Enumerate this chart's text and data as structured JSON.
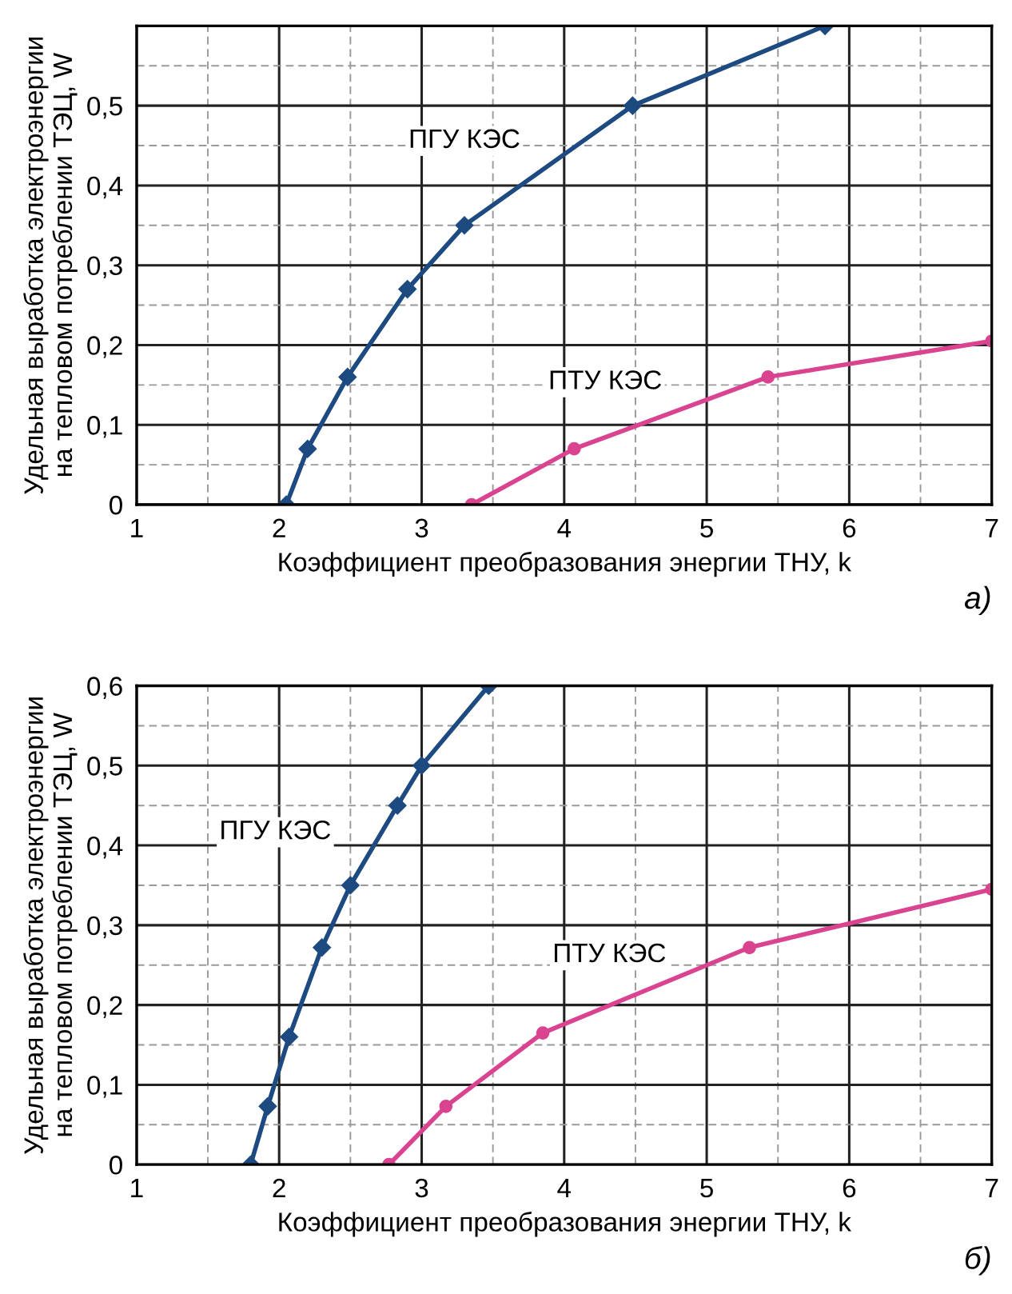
{
  "chart_data": [
    {
      "type": "line",
      "xlabel": "Коэффициент преобразования энергии ТНУ, k",
      "ylabel": "Удельная выработка электроэнергии\nна тепловом потреблении ТЭЦ, W",
      "xlim": [
        1,
        7
      ],
      "ylim": [
        0,
        0.6
      ],
      "xticks": [
        1,
        2,
        3,
        4,
        5,
        6,
        7
      ],
      "yticks": [
        0,
        {
          "value": 0.1,
          "label": "0,1"
        },
        {
          "value": 0.2,
          "label": "0,2"
        },
        {
          "value": 0.3,
          "label": "0,3"
        },
        {
          "value": 0.4,
          "label": "0,4"
        },
        {
          "value": 0.5,
          "label": "0,5"
        },
        {
          "value": 0.6,
          "label": null
        }
      ],
      "grid": true,
      "line_style": "solid",
      "annotations": [
        "а)"
      ],
      "series": [
        {
          "name": "ПГУ КЭС",
          "color": "#1d4a80",
          "marker": "diamond",
          "x": [
            2.05,
            2.2,
            2.48,
            2.9,
            3.3,
            4.48,
            5.83
          ],
          "values": [
            0,
            0.07,
            0.16,
            0.27,
            0.35,
            0.5,
            0.6
          ]
        },
        {
          "name": "ПТУ КЭС",
          "color": "#d9438f",
          "marker": "circle",
          "x": [
            3.35,
            4.07,
            5.43,
            7
          ],
          "values": [
            0,
            0.07,
            0.16,
            0.205
          ]
        }
      ]
    },
    {
      "type": "line",
      "xlabel": "Коэффициент преобразования энергии ТНУ, k",
      "ylabel": "Удельная выработка электроэнергии\nна тепловом потреблении ТЭЦ, W",
      "xlim": [
        1,
        7
      ],
      "ylim": [
        0,
        0.6
      ],
      "xticks": [
        1,
        2,
        3,
        4,
        5,
        6,
        7
      ],
      "yticks": [
        0,
        {
          "value": 0.1,
          "label": "0,1"
        },
        {
          "value": 0.2,
          "label": "0,2"
        },
        {
          "value": 0.3,
          "label": "0,3"
        },
        {
          "value": 0.4,
          "label": "0,4"
        },
        {
          "value": 0.5,
          "label": "0,5"
        },
        {
          "value": 0.6,
          "label": "0,6"
        }
      ],
      "grid": true,
      "line_style": "solid",
      "annotations": [
        "б)"
      ],
      "series": [
        {
          "name": "ПГУ КЭС",
          "color": "#1d4a80",
          "marker": "diamond",
          "x": [
            1.8,
            1.92,
            2.07,
            2.3,
            2.5,
            2.83,
            3.0,
            3.47
          ],
          "values": [
            0,
            0.073,
            0.16,
            0.272,
            0.35,
            0.45,
            0.5,
            0.6
          ]
        },
        {
          "name": "ПТУ КЭС",
          "color": "#d9438f",
          "marker": "circle",
          "x": [
            2.77,
            3.17,
            3.85,
            5.3,
            7
          ],
          "values": [
            0,
            0.073,
            0.165,
            0.272,
            0.345
          ]
        }
      ]
    }
  ]
}
